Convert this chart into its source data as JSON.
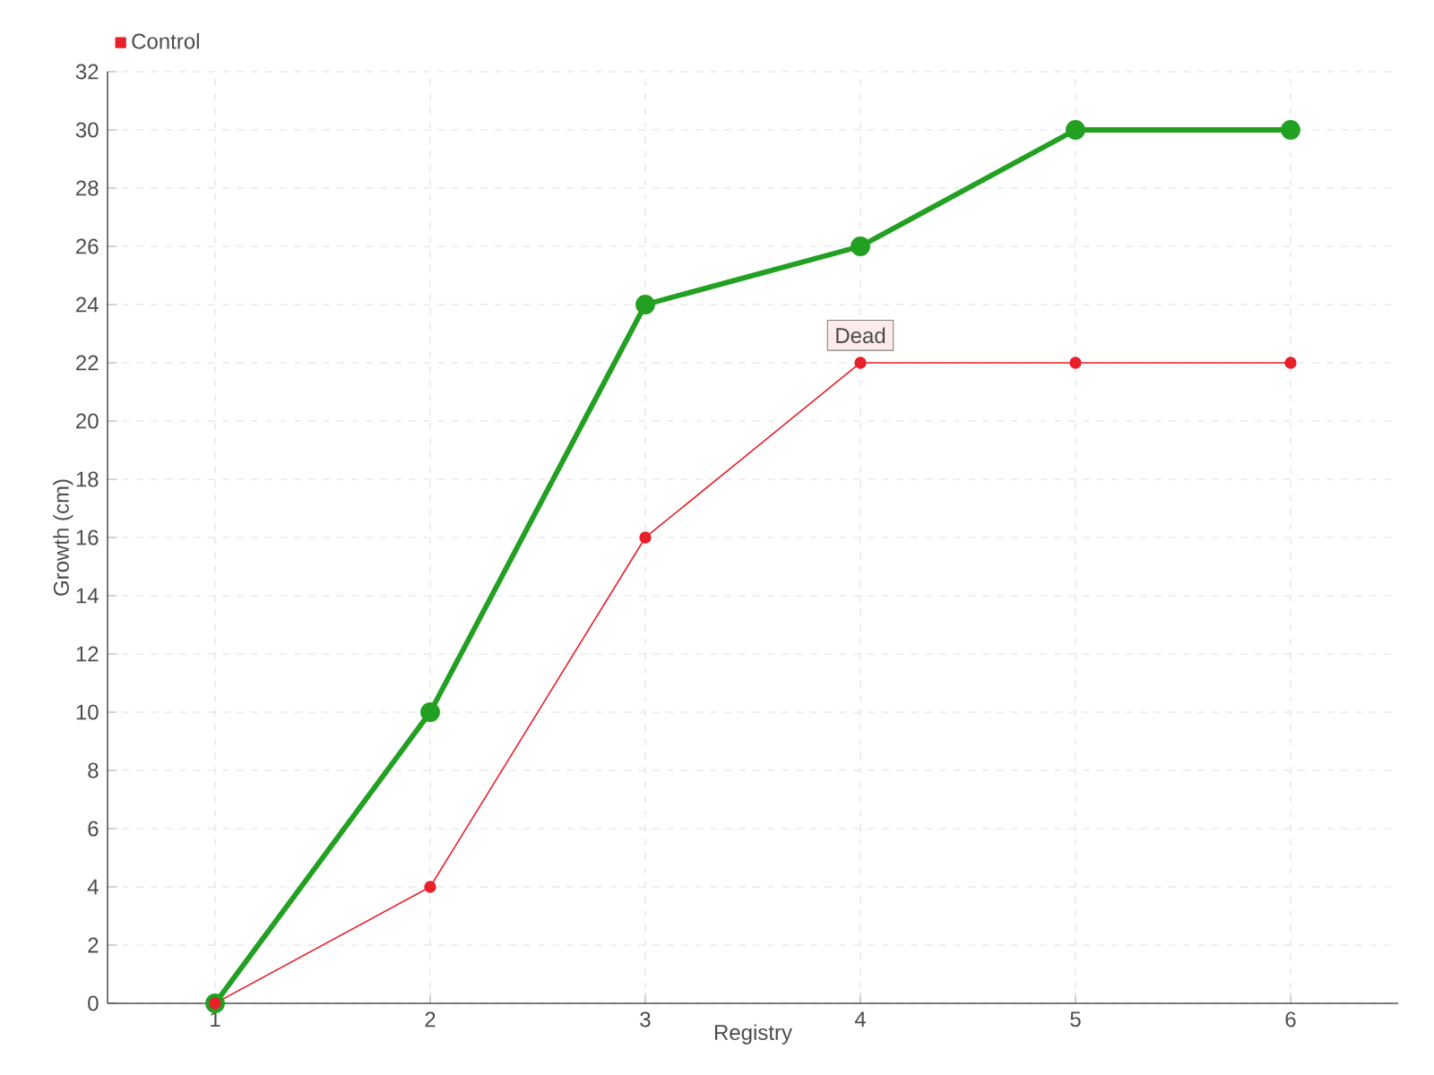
{
  "chart_data": {
    "type": "line",
    "xlabel": "Registry",
    "ylabel": "Growth (cm)",
    "x": [
      1,
      2,
      3,
      4,
      5,
      6
    ],
    "series": [
      {
        "color": "#22a022",
        "values": [
          0,
          10,
          24,
          26,
          30,
          30
        ]
      },
      {
        "name": "Control",
        "color": "#e8202a",
        "values": [
          0,
          4,
          16,
          22,
          22,
          22
        ]
      }
    ],
    "xlim": [
      0.5,
      6.5
    ],
    "xticks": [
      1,
      2,
      3,
      4,
      5,
      6
    ],
    "ylim": [
      0,
      32
    ],
    "yticks": [
      0,
      2,
      4,
      6,
      8,
      10,
      12,
      14,
      16,
      18,
      20,
      22,
      24,
      26,
      28,
      30,
      32
    ],
    "grid": true,
    "legend": "top left",
    "marker": "circle",
    "line_style": "solid",
    "annotations": [
      {
        "text": "Dead",
        "x": 4,
        "y": 22
      }
    ]
  }
}
